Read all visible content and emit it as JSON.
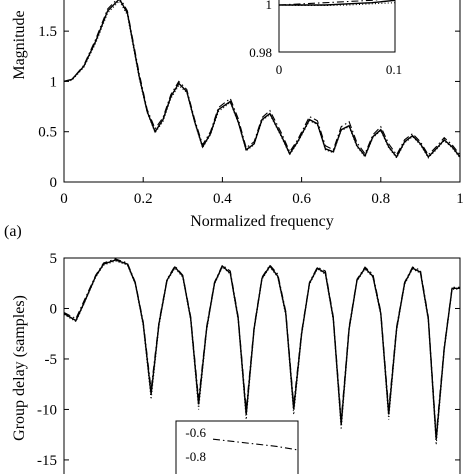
{
  "chart_data": [
    {
      "type": "line",
      "panel_label": "(a)",
      "xlabel": "Normalized frequency",
      "ylabel": "Magnitude",
      "xlim": [
        0,
        1
      ],
      "ylim": [
        0,
        1.75
      ],
      "xticks": [
        0,
        0.2,
        0.4,
        0.6,
        0.8,
        1
      ],
      "xtick_labels": [
        "0",
        "0.2",
        "0.4",
        "0.6",
        "0.8",
        "1"
      ],
      "yticks": [
        0,
        0.5,
        1,
        1.5
      ],
      "ytick_labels": [
        "0",
        "0.5",
        "1",
        "1.5"
      ],
      "grid": false,
      "series": [
        {
          "style": "solid",
          "x": [
            0,
            0.02,
            0.05,
            0.08,
            0.11,
            0.14,
            0.16,
            0.19,
            0.21,
            0.23,
            0.25,
            0.27,
            0.29,
            0.31,
            0.33,
            0.35,
            0.37,
            0.39,
            0.42,
            0.44,
            0.46,
            0.48,
            0.5,
            0.52,
            0.55,
            0.57,
            0.59,
            0.62,
            0.64,
            0.66,
            0.68,
            0.7,
            0.72,
            0.74,
            0.76,
            0.78,
            0.8,
            0.82,
            0.84,
            0.86,
            0.88,
            0.9,
            0.92,
            0.94,
            0.96,
            0.98,
            1.0
          ],
          "y": [
            1.0,
            1.02,
            1.15,
            1.4,
            1.7,
            1.82,
            1.68,
            1.05,
            0.7,
            0.5,
            0.62,
            0.85,
            0.98,
            0.9,
            0.6,
            0.35,
            0.48,
            0.72,
            0.8,
            0.6,
            0.32,
            0.38,
            0.62,
            0.68,
            0.45,
            0.28,
            0.4,
            0.62,
            0.58,
            0.33,
            0.3,
            0.52,
            0.56,
            0.36,
            0.26,
            0.45,
            0.52,
            0.35,
            0.25,
            0.4,
            0.46,
            0.38,
            0.25,
            0.33,
            0.42,
            0.35,
            0.25
          ]
        },
        {
          "style": "dashdot",
          "x": [
            0,
            0.02,
            0.05,
            0.08,
            0.11,
            0.14,
            0.16,
            0.19,
            0.21,
            0.23,
            0.25,
            0.27,
            0.29,
            0.31,
            0.33,
            0.35,
            0.37,
            0.39,
            0.42,
            0.44,
            0.46,
            0.48,
            0.5,
            0.52,
            0.55,
            0.57,
            0.59,
            0.62,
            0.64,
            0.66,
            0.68,
            0.7,
            0.72,
            0.74,
            0.76,
            0.78,
            0.8,
            0.82,
            0.84,
            0.86,
            0.88,
            0.9,
            0.92,
            0.94,
            0.96,
            0.98,
            1.0
          ],
          "y": [
            1.0,
            1.02,
            1.16,
            1.42,
            1.72,
            1.84,
            1.7,
            1.08,
            0.72,
            0.53,
            0.64,
            0.87,
            1.0,
            0.92,
            0.62,
            0.37,
            0.5,
            0.74,
            0.83,
            0.63,
            0.34,
            0.4,
            0.64,
            0.71,
            0.48,
            0.3,
            0.42,
            0.65,
            0.61,
            0.36,
            0.32,
            0.55,
            0.6,
            0.39,
            0.28,
            0.47,
            0.55,
            0.38,
            0.27,
            0.42,
            0.48,
            0.4,
            0.27,
            0.35,
            0.44,
            0.37,
            0.27
          ]
        },
        {
          "style": "dotted",
          "x": [
            0,
            0.02,
            0.05,
            0.08,
            0.11,
            0.14,
            0.16,
            0.19,
            0.21,
            0.23,
            0.25,
            0.27,
            0.29,
            0.31,
            0.33,
            0.35,
            0.37,
            0.39,
            0.42,
            0.44,
            0.46,
            0.48,
            0.5,
            0.52,
            0.55,
            0.57,
            0.59,
            0.62,
            0.64,
            0.66,
            0.68,
            0.7,
            0.72,
            0.74,
            0.76,
            0.78,
            0.8,
            0.82,
            0.84,
            0.86,
            0.88,
            0.9,
            0.92,
            0.94,
            0.96,
            0.98,
            1.0
          ],
          "y": [
            1.0,
            1.01,
            1.14,
            1.38,
            1.68,
            1.8,
            1.66,
            1.03,
            0.69,
            0.49,
            0.6,
            0.83,
            0.96,
            0.89,
            0.59,
            0.34,
            0.47,
            0.7,
            0.79,
            0.59,
            0.31,
            0.37,
            0.61,
            0.67,
            0.44,
            0.27,
            0.39,
            0.61,
            0.57,
            0.32,
            0.29,
            0.51,
            0.55,
            0.35,
            0.25,
            0.44,
            0.51,
            0.34,
            0.24,
            0.39,
            0.45,
            0.37,
            0.24,
            0.32,
            0.41,
            0.34,
            0.24
          ]
        }
      ],
      "inset": {
        "xlim": [
          0,
          0.1
        ],
        "ylim": [
          0.98,
          1.02
        ],
        "xtick_labels": [
          "0",
          "0.1"
        ],
        "ytick_labels": [
          "0.98",
          "1"
        ],
        "series": [
          {
            "style": "solid",
            "x": [
              0,
              0.02,
              0.04,
              0.06,
              0.08,
              0.1
            ],
            "y": [
              1.0,
              1.0,
              1.0,
              1.0005,
              1.001,
              1.002
            ]
          },
          {
            "style": "dashdot",
            "x": [
              0,
              0.02,
              0.04,
              0.06,
              0.08,
              0.1
            ],
            "y": [
              1.0,
              1.0005,
              1.001,
              1.0015,
              1.002,
              1.003
            ]
          },
          {
            "style": "dotted",
            "x": [
              0,
              0.02,
              0.04,
              0.06,
              0.08,
              0.1
            ],
            "y": [
              1.0,
              0.9998,
              0.9998,
              1.0,
              1.0005,
              1.001
            ]
          }
        ]
      }
    },
    {
      "type": "line",
      "ylabel": "Group delay (samples)",
      "xlim": [
        0,
        1
      ],
      "ylim": [
        -15.8,
        5
      ],
      "yticks": [
        5,
        0,
        -5,
        -10,
        -15
      ],
      "ytick_labels": [
        "5",
        "0",
        "-5",
        "-10",
        "-15"
      ],
      "grid": false,
      "series": [
        {
          "style": "solid",
          "x": [
            0,
            0.03,
            0.05,
            0.08,
            0.1,
            0.13,
            0.16,
            0.18,
            0.2,
            0.22,
            0.24,
            0.26,
            0.28,
            0.3,
            0.32,
            0.34,
            0.36,
            0.38,
            0.4,
            0.42,
            0.44,
            0.46,
            0.48,
            0.5,
            0.52,
            0.54,
            0.56,
            0.58,
            0.6,
            0.62,
            0.64,
            0.66,
            0.68,
            0.7,
            0.72,
            0.74,
            0.76,
            0.78,
            0.8,
            0.82,
            0.84,
            0.86,
            0.88,
            0.9,
            0.92,
            0.94,
            0.96,
            0.98,
            1.0
          ],
          "y": [
            -0.5,
            -1.2,
            0.5,
            3.2,
            4.4,
            4.8,
            4.4,
            2.5,
            -1.5,
            -8.5,
            -1.5,
            2.8,
            4.1,
            3.2,
            -1.0,
            -9.5,
            -2.0,
            2.5,
            4.2,
            3.5,
            -1.0,
            -10.5,
            -2.0,
            3.0,
            4.2,
            3.2,
            -0.5,
            -10.0,
            -2.5,
            2.5,
            4.0,
            3.5,
            -1.0,
            -11.5,
            -2.0,
            2.8,
            4.0,
            3.2,
            -0.5,
            -10.5,
            -2.0,
            2.5,
            4.0,
            3.6,
            -1.0,
            -13.0,
            -4.0,
            2.0,
            2.0
          ]
        },
        {
          "style": "dashdot",
          "x": [
            0,
            0.03,
            0.05,
            0.08,
            0.1,
            0.13,
            0.16,
            0.18,
            0.2,
            0.22,
            0.24,
            0.26,
            0.28,
            0.3,
            0.32,
            0.34,
            0.36,
            0.38,
            0.4,
            0.42,
            0.44,
            0.46,
            0.48,
            0.5,
            0.52,
            0.54,
            0.56,
            0.58,
            0.6,
            0.62,
            0.64,
            0.66,
            0.68,
            0.7,
            0.72,
            0.74,
            0.76,
            0.78,
            0.8,
            0.82,
            0.84,
            0.86,
            0.88,
            0.9,
            0.92,
            0.94,
            0.96,
            0.98,
            1.0
          ],
          "y": [
            -0.4,
            -1.0,
            0.7,
            3.3,
            4.5,
            4.9,
            4.5,
            2.6,
            -1.3,
            -8.0,
            -1.3,
            2.9,
            4.2,
            3.3,
            -0.8,
            -9.0,
            -1.8,
            2.6,
            4.3,
            3.7,
            -0.8,
            -10.0,
            -1.8,
            3.1,
            4.3,
            3.4,
            -0.3,
            -9.5,
            -2.3,
            2.6,
            4.1,
            3.7,
            -0.8,
            -11.0,
            -1.8,
            2.9,
            4.1,
            3.4,
            -0.3,
            -10.0,
            -1.8,
            2.6,
            4.1,
            3.8,
            -0.8,
            -12.5,
            -3.8,
            2.1,
            2.1
          ]
        },
        {
          "style": "dotted",
          "x": [
            0,
            0.03,
            0.05,
            0.08,
            0.1,
            0.13,
            0.16,
            0.18,
            0.2,
            0.22,
            0.24,
            0.26,
            0.28,
            0.3,
            0.32,
            0.34,
            0.36,
            0.38,
            0.4,
            0.42,
            0.44,
            0.46,
            0.48,
            0.5,
            0.52,
            0.54,
            0.56,
            0.58,
            0.6,
            0.62,
            0.64,
            0.66,
            0.68,
            0.7,
            0.72,
            0.74,
            0.76,
            0.78,
            0.8,
            0.82,
            0.84,
            0.86,
            0.88,
            0.9,
            0.92,
            0.94,
            0.96,
            0.98,
            1.0
          ],
          "y": [
            -0.6,
            -1.3,
            0.4,
            3.1,
            4.3,
            4.7,
            4.3,
            2.4,
            -1.7,
            -9.0,
            -1.7,
            2.7,
            4.0,
            3.1,
            -1.2,
            -10.0,
            -2.2,
            2.4,
            4.1,
            3.4,
            -1.2,
            -11.0,
            -2.2,
            2.9,
            4.1,
            3.1,
            -0.7,
            -10.5,
            -2.7,
            2.4,
            3.9,
            3.4,
            -1.2,
            -12.0,
            -2.2,
            2.7,
            3.9,
            3.1,
            -0.7,
            -11.0,
            -2.2,
            2.4,
            3.9,
            3.5,
            -1.2,
            -13.5,
            -4.2,
            1.9,
            1.9
          ]
        }
      ],
      "inset": {
        "ylim": [
          -0.9,
          -0.6
        ],
        "ytick_labels": [
          "-0.6",
          "-0.8"
        ],
        "series": [
          {
            "style": "dashdot",
            "x": [
              0,
              0.25,
              0.5,
              0.75,
              1.0
            ],
            "y": [
              -0.66,
              -0.68,
              -0.7,
              -0.72,
              -0.75
            ]
          }
        ]
      }
    }
  ]
}
